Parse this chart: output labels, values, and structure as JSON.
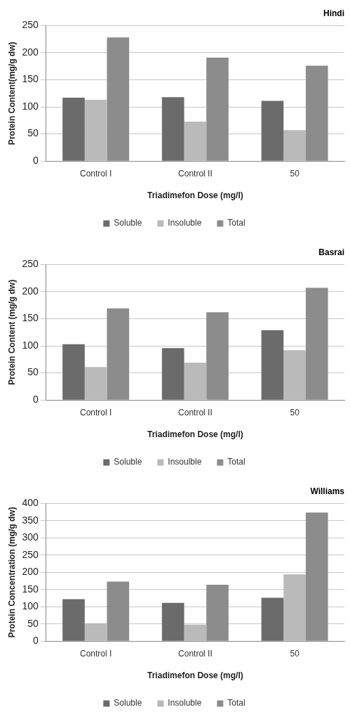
{
  "chart_data": [
    {
      "type": "bar",
      "title": "Hindi",
      "xlabel": "Triadimefon Dose (mg/l)",
      "ylabel": "Protein Content(mg/g dw)",
      "categories": [
        "Control I",
        "Control II",
        "50"
      ],
      "ylim": [
        0,
        250
      ],
      "yticks": [
        0,
        50,
        100,
        150,
        200,
        250
      ],
      "grid": "y",
      "legend": "bottom",
      "series": [
        {
          "name": "Soluble",
          "color": "#6b6b6b",
          "values": [
            117,
            118,
            111
          ]
        },
        {
          "name": "Insoluble",
          "color": "#bababa",
          "values": [
            113,
            73,
            57
          ]
        },
        {
          "name": "Total",
          "color": "#8c8c8c",
          "values": [
            228,
            191,
            176
          ]
        }
      ]
    },
    {
      "type": "bar",
      "title": "Basrai",
      "xlabel": "Triadimefon Dose (mg/l)",
      "ylabel": "Protein Content (mg/g dw)",
      "categories": [
        "Control I",
        "Control II",
        "50"
      ],
      "ylim": [
        0,
        250
      ],
      "yticks": [
        0,
        50,
        100,
        150,
        200,
        250
      ],
      "grid": "y",
      "legend": "bottom",
      "series": [
        {
          "name": "Soluble",
          "color": "#6b6b6b",
          "values": [
            103,
            96,
            129
          ]
        },
        {
          "name": "Insoulble",
          "color": "#bababa",
          "values": [
            61,
            69,
            92
          ]
        },
        {
          "name": "Total",
          "color": "#8c8c8c",
          "values": [
            169,
            162,
            207
          ]
        }
      ]
    },
    {
      "type": "bar",
      "title": "Williams",
      "xlabel": "Triadimefon Dose (mg/l)",
      "ylabel": "Protein Concentration (mg/g dw)",
      "categories": [
        "Control I",
        "Control II",
        "50"
      ],
      "ylim": [
        0,
        400
      ],
      "yticks": [
        0,
        50,
        100,
        150,
        200,
        250,
        300,
        350,
        400
      ],
      "grid": "y",
      "legend": "bottom",
      "series": [
        {
          "name": "Soluble",
          "color": "#6b6b6b",
          "values": [
            122,
            111,
            126
          ]
        },
        {
          "name": "Insoluble",
          "color": "#bababa",
          "values": [
            52,
            48,
            194
          ]
        },
        {
          "name": "Total",
          "color": "#8c8c8c",
          "values": [
            173,
            164,
            374
          ]
        }
      ]
    }
  ]
}
